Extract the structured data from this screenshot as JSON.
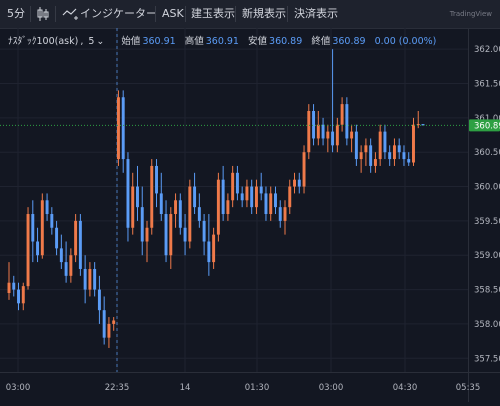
{
  "toolbar": {
    "interval": "5分",
    "indicators_label": "インジケーター",
    "ask_label": "ASK",
    "position_label": "建玉表示",
    "new_order_label": "新規表示",
    "settlement_label": "決済表示",
    "logo_text": "TradingView"
  },
  "legend": {
    "symbol": "ﾅｽﾀﾞｯｸ100(ask)",
    "interval": "5",
    "open_label": "始値",
    "open": "360.91",
    "high_label": "高値",
    "high": "360.91",
    "low_label": "安値",
    "low": "360.89",
    "close_label": "終値",
    "close": "360.89",
    "change": "0.00 (0.00%)"
  },
  "price_axis": {
    "ticks": [
      "362.00",
      "361.50",
      "361.00",
      "360.50",
      "360.00",
      "359.50",
      "359.00",
      "358.50",
      "358.00",
      "357.50"
    ],
    "current_price": "360.89"
  },
  "time_axis": {
    "ticks": [
      "03:00",
      "22:35",
      "14",
      "01:30",
      "03:00",
      "04:30",
      "05:35"
    ]
  },
  "colors": {
    "background": "#131722",
    "up": "#ef7a4a",
    "down": "#5b9cf6",
    "grid": "#1f2330",
    "price_line": "#2ea043"
  },
  "chart_data": {
    "type": "candlestick",
    "ylim": [
      357.3,
      362.25
    ],
    "current_price": 360.89,
    "candles": [
      [
        358.45,
        358.9,
        358.35,
        358.6
      ],
      [
        358.6,
        358.7,
        358.4,
        358.5
      ],
      [
        358.5,
        358.6,
        358.2,
        358.3
      ],
      [
        358.3,
        358.6,
        358.2,
        358.55
      ],
      [
        358.55,
        359.7,
        358.5,
        359.6
      ],
      [
        359.6,
        359.8,
        358.9,
        359.2
      ],
      [
        359.2,
        359.4,
        358.9,
        359.0
      ],
      [
        359.0,
        359.9,
        358.95,
        359.8
      ],
      [
        359.8,
        359.9,
        359.5,
        359.6
      ],
      [
        359.6,
        359.7,
        359.3,
        359.4
      ],
      [
        359.4,
        359.5,
        359.0,
        359.1
      ],
      [
        359.1,
        359.3,
        358.8,
        358.9
      ],
      [
        358.9,
        359.2,
        358.6,
        358.7
      ],
      [
        358.7,
        359.1,
        358.6,
        359.0
      ],
      [
        359.0,
        359.6,
        358.9,
        359.5
      ],
      [
        359.5,
        359.6,
        358.7,
        358.8
      ],
      [
        358.8,
        359.0,
        358.3,
        358.5
      ],
      [
        358.5,
        358.9,
        358.4,
        358.8
      ],
      [
        358.8,
        358.9,
        358.4,
        358.5
      ],
      [
        358.5,
        358.7,
        358.0,
        358.2
      ],
      [
        358.2,
        358.4,
        357.7,
        357.8
      ],
      [
        357.8,
        358.1,
        357.65,
        358.0
      ],
      [
        358.0,
        358.1,
        357.9,
        358.05
      ],
      [
        360.4,
        361.4,
        360.3,
        361.3
      ],
      [
        361.3,
        361.4,
        360.2,
        360.4
      ],
      [
        360.4,
        360.5,
        359.2,
        359.4
      ],
      [
        359.4,
        360.2,
        359.3,
        360.0
      ],
      [
        360.0,
        360.3,
        359.5,
        359.7
      ],
      [
        359.7,
        360.0,
        359.0,
        359.2
      ],
      [
        359.2,
        359.5,
        358.9,
        359.4
      ],
      [
        359.4,
        360.4,
        359.3,
        360.3
      ],
      [
        360.3,
        360.4,
        359.7,
        359.9
      ],
      [
        359.9,
        360.2,
        359.5,
        359.6
      ],
      [
        359.6,
        359.8,
        358.9,
        359.0
      ],
      [
        359.0,
        359.7,
        358.8,
        359.6
      ],
      [
        359.6,
        359.9,
        359.4,
        359.8
      ],
      [
        359.8,
        359.9,
        359.3,
        359.4
      ],
      [
        359.4,
        359.6,
        359.0,
        359.2
      ],
      [
        359.2,
        360.1,
        359.1,
        360.0
      ],
      [
        360.0,
        360.2,
        359.6,
        359.7
      ],
      [
        359.7,
        359.9,
        359.4,
        359.5
      ],
      [
        359.5,
        359.6,
        359.0,
        359.2
      ],
      [
        359.2,
        359.6,
        358.7,
        358.9
      ],
      [
        358.9,
        359.4,
        358.8,
        359.3
      ],
      [
        359.3,
        360.2,
        359.2,
        360.1
      ],
      [
        360.1,
        360.3,
        359.5,
        359.6
      ],
      [
        359.6,
        359.9,
        359.5,
        359.8
      ],
      [
        359.8,
        360.3,
        359.7,
        360.2
      ],
      [
        360.2,
        360.3,
        359.8,
        359.9
      ],
      [
        359.9,
        360.0,
        359.7,
        359.8
      ],
      [
        359.8,
        360.1,
        359.7,
        360.0
      ],
      [
        360.0,
        360.1,
        359.6,
        359.7
      ],
      [
        359.7,
        360.1,
        359.6,
        360.0
      ],
      [
        360.0,
        360.2,
        359.8,
        359.9
      ],
      [
        359.9,
        360.0,
        359.5,
        359.6
      ],
      [
        359.6,
        360.0,
        359.5,
        359.9
      ],
      [
        359.9,
        360.0,
        359.6,
        359.7
      ],
      [
        359.7,
        359.8,
        359.4,
        359.5
      ],
      [
        359.5,
        359.8,
        359.3,
        359.7
      ],
      [
        359.7,
        360.1,
        359.6,
        360.0
      ],
      [
        360.0,
        360.2,
        359.9,
        360.1
      ],
      [
        360.1,
        360.2,
        359.9,
        360.0
      ],
      [
        360.0,
        360.6,
        359.9,
        360.5
      ],
      [
        360.5,
        361.2,
        360.4,
        361.1
      ],
      [
        361.1,
        361.2,
        360.6,
        360.7
      ],
      [
        360.7,
        361.1,
        360.6,
        360.9
      ],
      [
        360.9,
        361.0,
        360.6,
        360.7
      ],
      [
        360.7,
        360.9,
        360.5,
        360.8
      ],
      [
        360.8,
        362.0,
        360.5,
        360.6
      ],
      [
        360.6,
        361.0,
        360.5,
        360.9
      ],
      [
        360.9,
        361.3,
        360.8,
        361.2
      ],
      [
        361.2,
        361.3,
        360.6,
        360.7
      ],
      [
        360.7,
        360.9,
        360.5,
        360.8
      ],
      [
        360.8,
        360.9,
        360.3,
        360.4
      ],
      [
        360.4,
        360.6,
        360.2,
        360.5
      ],
      [
        360.5,
        360.7,
        360.3,
        360.6
      ],
      [
        360.6,
        360.7,
        360.2,
        360.3
      ],
      [
        360.3,
        360.5,
        360.2,
        360.4
      ],
      [
        360.4,
        360.9,
        360.3,
        360.8
      ],
      [
        360.8,
        360.9,
        360.4,
        360.5
      ],
      [
        360.5,
        360.6,
        360.3,
        360.4
      ],
      [
        360.4,
        360.7,
        360.3,
        360.6
      ],
      [
        360.6,
        360.7,
        360.4,
        360.5
      ],
      [
        360.5,
        360.6,
        360.3,
        360.4
      ],
      [
        360.4,
        360.5,
        360.3,
        360.35
      ],
      [
        360.35,
        361.0,
        360.3,
        360.9
      ],
      [
        360.9,
        361.1,
        360.85,
        360.91
      ],
      [
        360.91,
        360.91,
        360.89,
        360.89
      ]
    ]
  }
}
